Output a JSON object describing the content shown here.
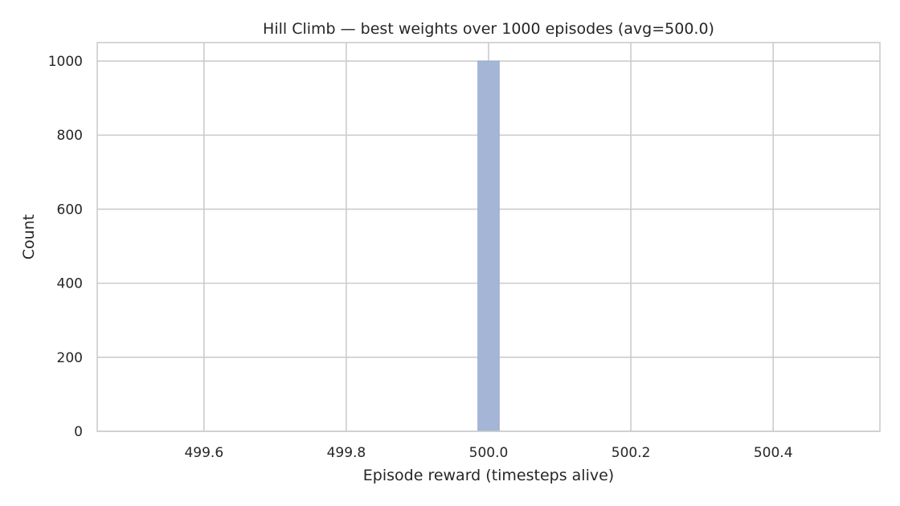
{
  "chart_data": {
    "type": "bar",
    "subtype": "histogram",
    "title": "Hill Climb — best weights over 1000 episodes (avg=500.0)",
    "xlabel": "Episode reward (timesteps alive)",
    "ylabel": "Count",
    "xlim": [
      499.45,
      500.55
    ],
    "ylim": [
      0,
      1050
    ],
    "xticks": [
      499.6,
      499.8,
      500.0,
      500.2,
      500.4
    ],
    "xtick_labels": [
      "499.6",
      "499.8",
      "500.0",
      "500.2",
      "500.4"
    ],
    "yticks": [
      0,
      200,
      400,
      600,
      800,
      1000
    ],
    "ytick_labels": [
      "0",
      "200",
      "400",
      "600",
      "800",
      "1000"
    ],
    "bins": [
      {
        "x_start": 499.985,
        "x_end": 500.015,
        "count": 1000
      }
    ],
    "grid": true,
    "legend": "none",
    "colors": {
      "bar_fill": "#a4b5d6",
      "bar_stroke": "#9aabcf",
      "grid": "#cccccc",
      "frame": "#cccccc",
      "text": "#262626",
      "background": "#ffffff"
    }
  }
}
